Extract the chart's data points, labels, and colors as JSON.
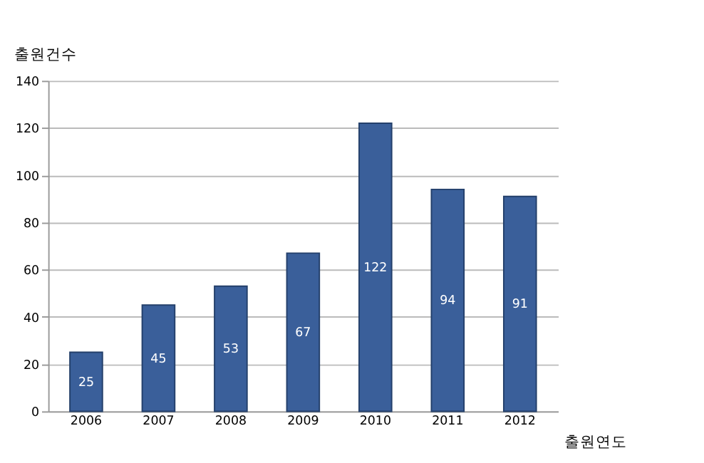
{
  "chart_data": {
    "type": "bar",
    "xlabel": "출원연도",
    "ylabel": "출원건수",
    "categories": [
      "2006",
      "2007",
      "2008",
      "2009",
      "2010",
      "2011",
      "2012"
    ],
    "values": [
      25,
      45,
      53,
      67,
      122,
      94,
      91
    ],
    "color": "#3a5f9a",
    "ylim": [
      0,
      140
    ],
    "yticks": [
      0,
      20,
      40,
      60,
      80,
      100,
      120,
      140
    ],
    "grid": "y",
    "data_labels": true
  }
}
